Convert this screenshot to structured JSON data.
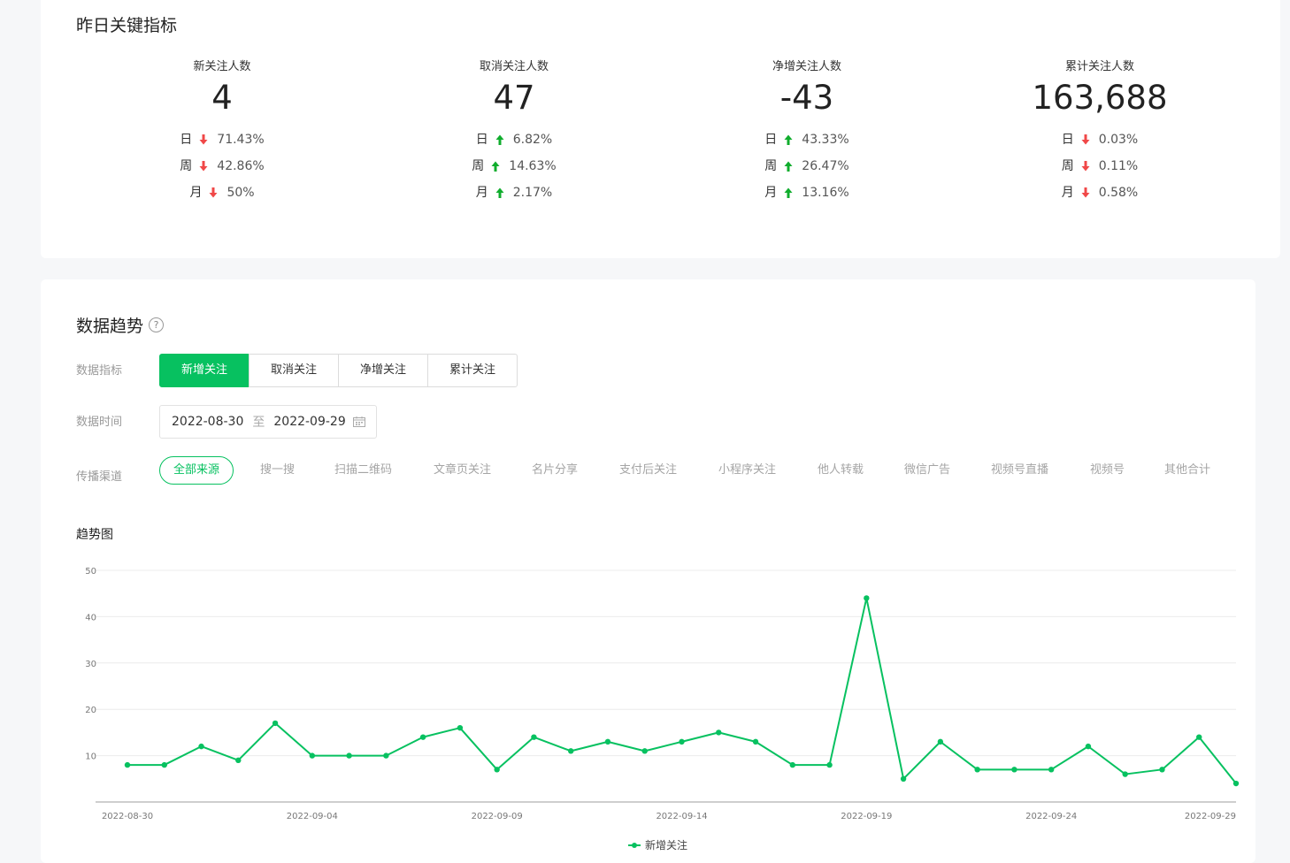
{
  "key_metrics": {
    "title": "昨日关键指标",
    "items": [
      {
        "label": "新关注人数",
        "value": "4",
        "rows": [
          {
            "period": "日",
            "dir": "down",
            "pct": "71.43%"
          },
          {
            "period": "周",
            "dir": "down",
            "pct": "42.86%"
          },
          {
            "period": "月",
            "dir": "down",
            "pct": "50%"
          }
        ]
      },
      {
        "label": "取消关注人数",
        "value": "47",
        "rows": [
          {
            "period": "日",
            "dir": "up",
            "pct": "6.82%"
          },
          {
            "period": "周",
            "dir": "up",
            "pct": "14.63%"
          },
          {
            "period": "月",
            "dir": "up",
            "pct": "2.17%"
          }
        ]
      },
      {
        "label": "净增关注人数",
        "value": "-43",
        "rows": [
          {
            "period": "日",
            "dir": "up",
            "pct": "43.33%"
          },
          {
            "period": "周",
            "dir": "up",
            "pct": "26.47%"
          },
          {
            "period": "月",
            "dir": "up",
            "pct": "13.16%"
          }
        ]
      },
      {
        "label": "累计关注人数",
        "value": "163,688",
        "rows": [
          {
            "period": "日",
            "dir": "down",
            "pct": "0.03%"
          },
          {
            "period": "周",
            "dir": "down",
            "pct": "0.11%"
          },
          {
            "period": "月",
            "dir": "down",
            "pct": "0.58%"
          }
        ]
      }
    ]
  },
  "trend": {
    "title": "数据趋势",
    "help_icon": "question-icon",
    "metric_label": "数据指标",
    "metric_tabs": [
      "新增关注",
      "取消关注",
      "净增关注",
      "累计关注"
    ],
    "active_metric": 0,
    "time_label": "数据时间",
    "date_from": "2022-08-30",
    "date_sep": "至",
    "date_to": "2022-09-29",
    "calendar_icon": "calendar-icon",
    "channel_label": "传播渠道",
    "channels": [
      "全部来源",
      "搜一搜",
      "扫描二维码",
      "文章页关注",
      "名片分享",
      "支付后关注",
      "小程序关注",
      "他人转载",
      "微信广告",
      "视频号直播",
      "视频号",
      "其他合计"
    ],
    "active_channel": 0,
    "chart_label": "趋势图"
  },
  "colors": {
    "accent": "#07c160",
    "down": "#f04848",
    "up": "#10ad2d"
  },
  "chart_data": {
    "type": "line",
    "x": [
      "2022-08-30",
      "2022-08-31",
      "2022-09-01",
      "2022-09-02",
      "2022-09-03",
      "2022-09-04",
      "2022-09-05",
      "2022-09-06",
      "2022-09-07",
      "2022-09-08",
      "2022-09-09",
      "2022-09-10",
      "2022-09-11",
      "2022-09-12",
      "2022-09-13",
      "2022-09-14",
      "2022-09-15",
      "2022-09-16",
      "2022-09-17",
      "2022-09-18",
      "2022-09-19",
      "2022-09-20",
      "2022-09-21",
      "2022-09-22",
      "2022-09-23",
      "2022-09-24",
      "2022-09-25",
      "2022-09-26",
      "2022-09-27",
      "2022-09-28",
      "2022-09-29"
    ],
    "series": [
      {
        "name": "新增关注",
        "values": [
          8,
          8,
          12,
          9,
          17,
          10,
          10,
          10,
          14,
          16,
          7,
          14,
          11,
          13,
          11,
          13,
          15,
          13,
          8,
          8,
          44,
          5,
          13,
          7,
          7,
          7,
          12,
          6,
          7,
          14,
          4
        ]
      }
    ],
    "x_tick_labels": [
      "2022-08-30",
      "2022-09-04",
      "2022-09-09",
      "2022-09-14",
      "2022-09-19",
      "2022-09-24",
      "2022-09-29"
    ],
    "y_ticks": [
      10,
      20,
      30,
      40,
      50
    ],
    "ylim": [
      0,
      50
    ],
    "grid": true,
    "legend": "bottom-center"
  }
}
